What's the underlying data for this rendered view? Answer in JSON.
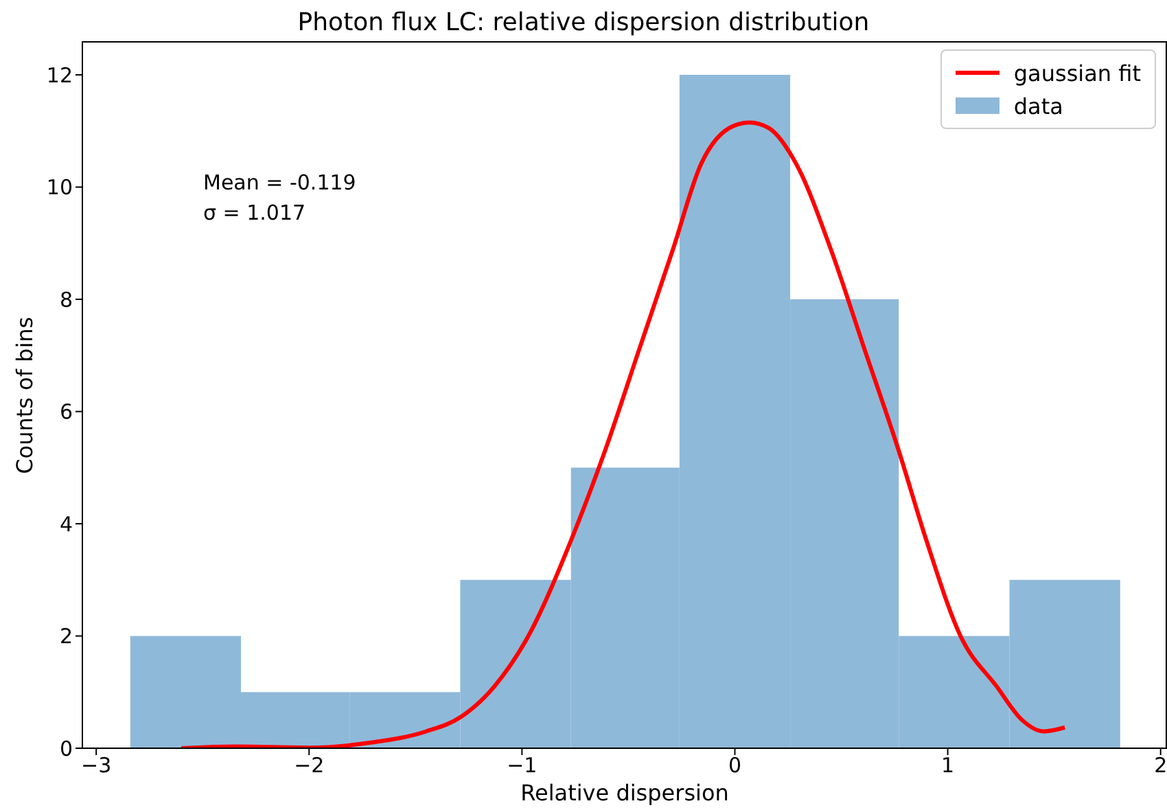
{
  "chart_data": {
    "type": "histogram",
    "title": "Photon flux LC: relative dispersion distribution",
    "xlabel": "Relative dispersion",
    "ylabel": "Counts of bins",
    "bins": [
      -2.84,
      -2.32,
      -1.81,
      -1.29,
      -0.77,
      -0.26,
      0.26,
      0.77,
      1.29,
      1.81
    ],
    "series": [
      {
        "name": "data",
        "color": "#8fb9d9",
        "values": [
          2,
          1,
          1,
          3,
          5,
          12,
          8,
          2,
          3
        ]
      },
      {
        "type": "line",
        "name": "gaussian fit",
        "color": "#ff0000",
        "x": [
          -2.6,
          -2.34,
          -2,
          -1.71,
          -1.45,
          -1.29,
          -1.13,
          -0.97,
          -0.77,
          -0.61,
          -0.45,
          -0.29,
          -0.16,
          0,
          0.07,
          0.16,
          0.29,
          0.45,
          0.61,
          0.77,
          0.9,
          1.06,
          1.23,
          1.35,
          1.45,
          1.55
        ],
        "values": [
          0,
          0.03,
          0.01,
          0.1,
          0.3,
          0.55,
          1.1,
          2.0,
          3.7,
          5.3,
          7.1,
          8.9,
          10.4,
          11.1,
          11.15,
          11.05,
          10.4,
          8.9,
          7.1,
          5.3,
          3.7,
          2.0,
          1.1,
          0.5,
          0.3,
          0.37
        ]
      }
    ],
    "annotations": [
      "Mean = -0.119",
      "σ = 1.017"
    ],
    "xlim": [
      -3.065,
      2.03
    ],
    "xticks": [
      {
        "value": -3,
        "label": "−3"
      },
      {
        "value": -2,
        "label": "−2"
      },
      {
        "value": -1,
        "label": "−1"
      },
      0,
      1,
      2
    ],
    "ylim": [
      0,
      12.6
    ],
    "yticks": [
      0,
      2,
      4,
      6,
      8,
      10,
      12
    ],
    "legend": "top right"
  }
}
